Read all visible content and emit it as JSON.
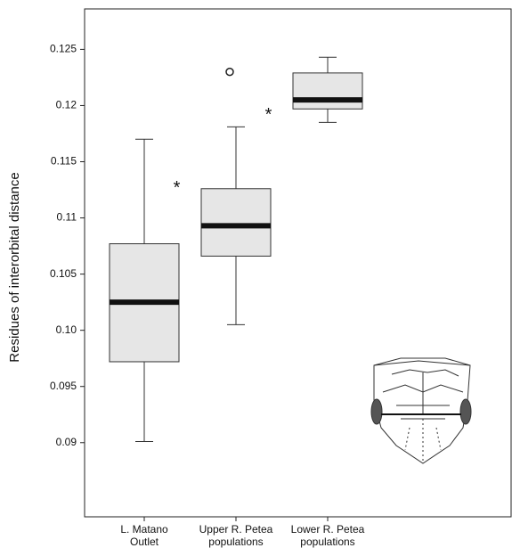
{
  "chart_data": {
    "type": "box",
    "y_label": "Residues of interorbital distance",
    "categories": [
      "L. Matano\nOutlet",
      "Upper R. Petea\npopulations",
      "Lower R. Petea\npopulations"
    ],
    "boxes": [
      {
        "whisker_low": 0.0901,
        "q1": 0.0972,
        "median": 0.1025,
        "q3": 0.1077,
        "whisker_high": 0.117
      },
      {
        "whisker_low": 0.1005,
        "q1": 0.1066,
        "median": 0.1093,
        "q3": 0.1126,
        "whisker_high": 0.1181
      },
      {
        "whisker_low": 0.1185,
        "q1": 0.1197,
        "median": 0.1205,
        "q3": 0.1229,
        "whisker_high": 0.1243
      }
    ],
    "outliers": [
      [],
      [
        0.123
      ],
      []
    ],
    "annotations": [
      {
        "text": "*",
        "y": 0.113
      },
      {
        "text": "*",
        "y": 0.1195
      }
    ],
    "box_color": "#e6e6e6",
    "ylim": [
      0.0834,
      0.1286
    ],
    "yticks": [
      0.09,
      0.095,
      {
        "value": 0.1,
        "label": "0.10"
      },
      0.105,
      0.11,
      0.115,
      0.12,
      0.125
    ]
  }
}
